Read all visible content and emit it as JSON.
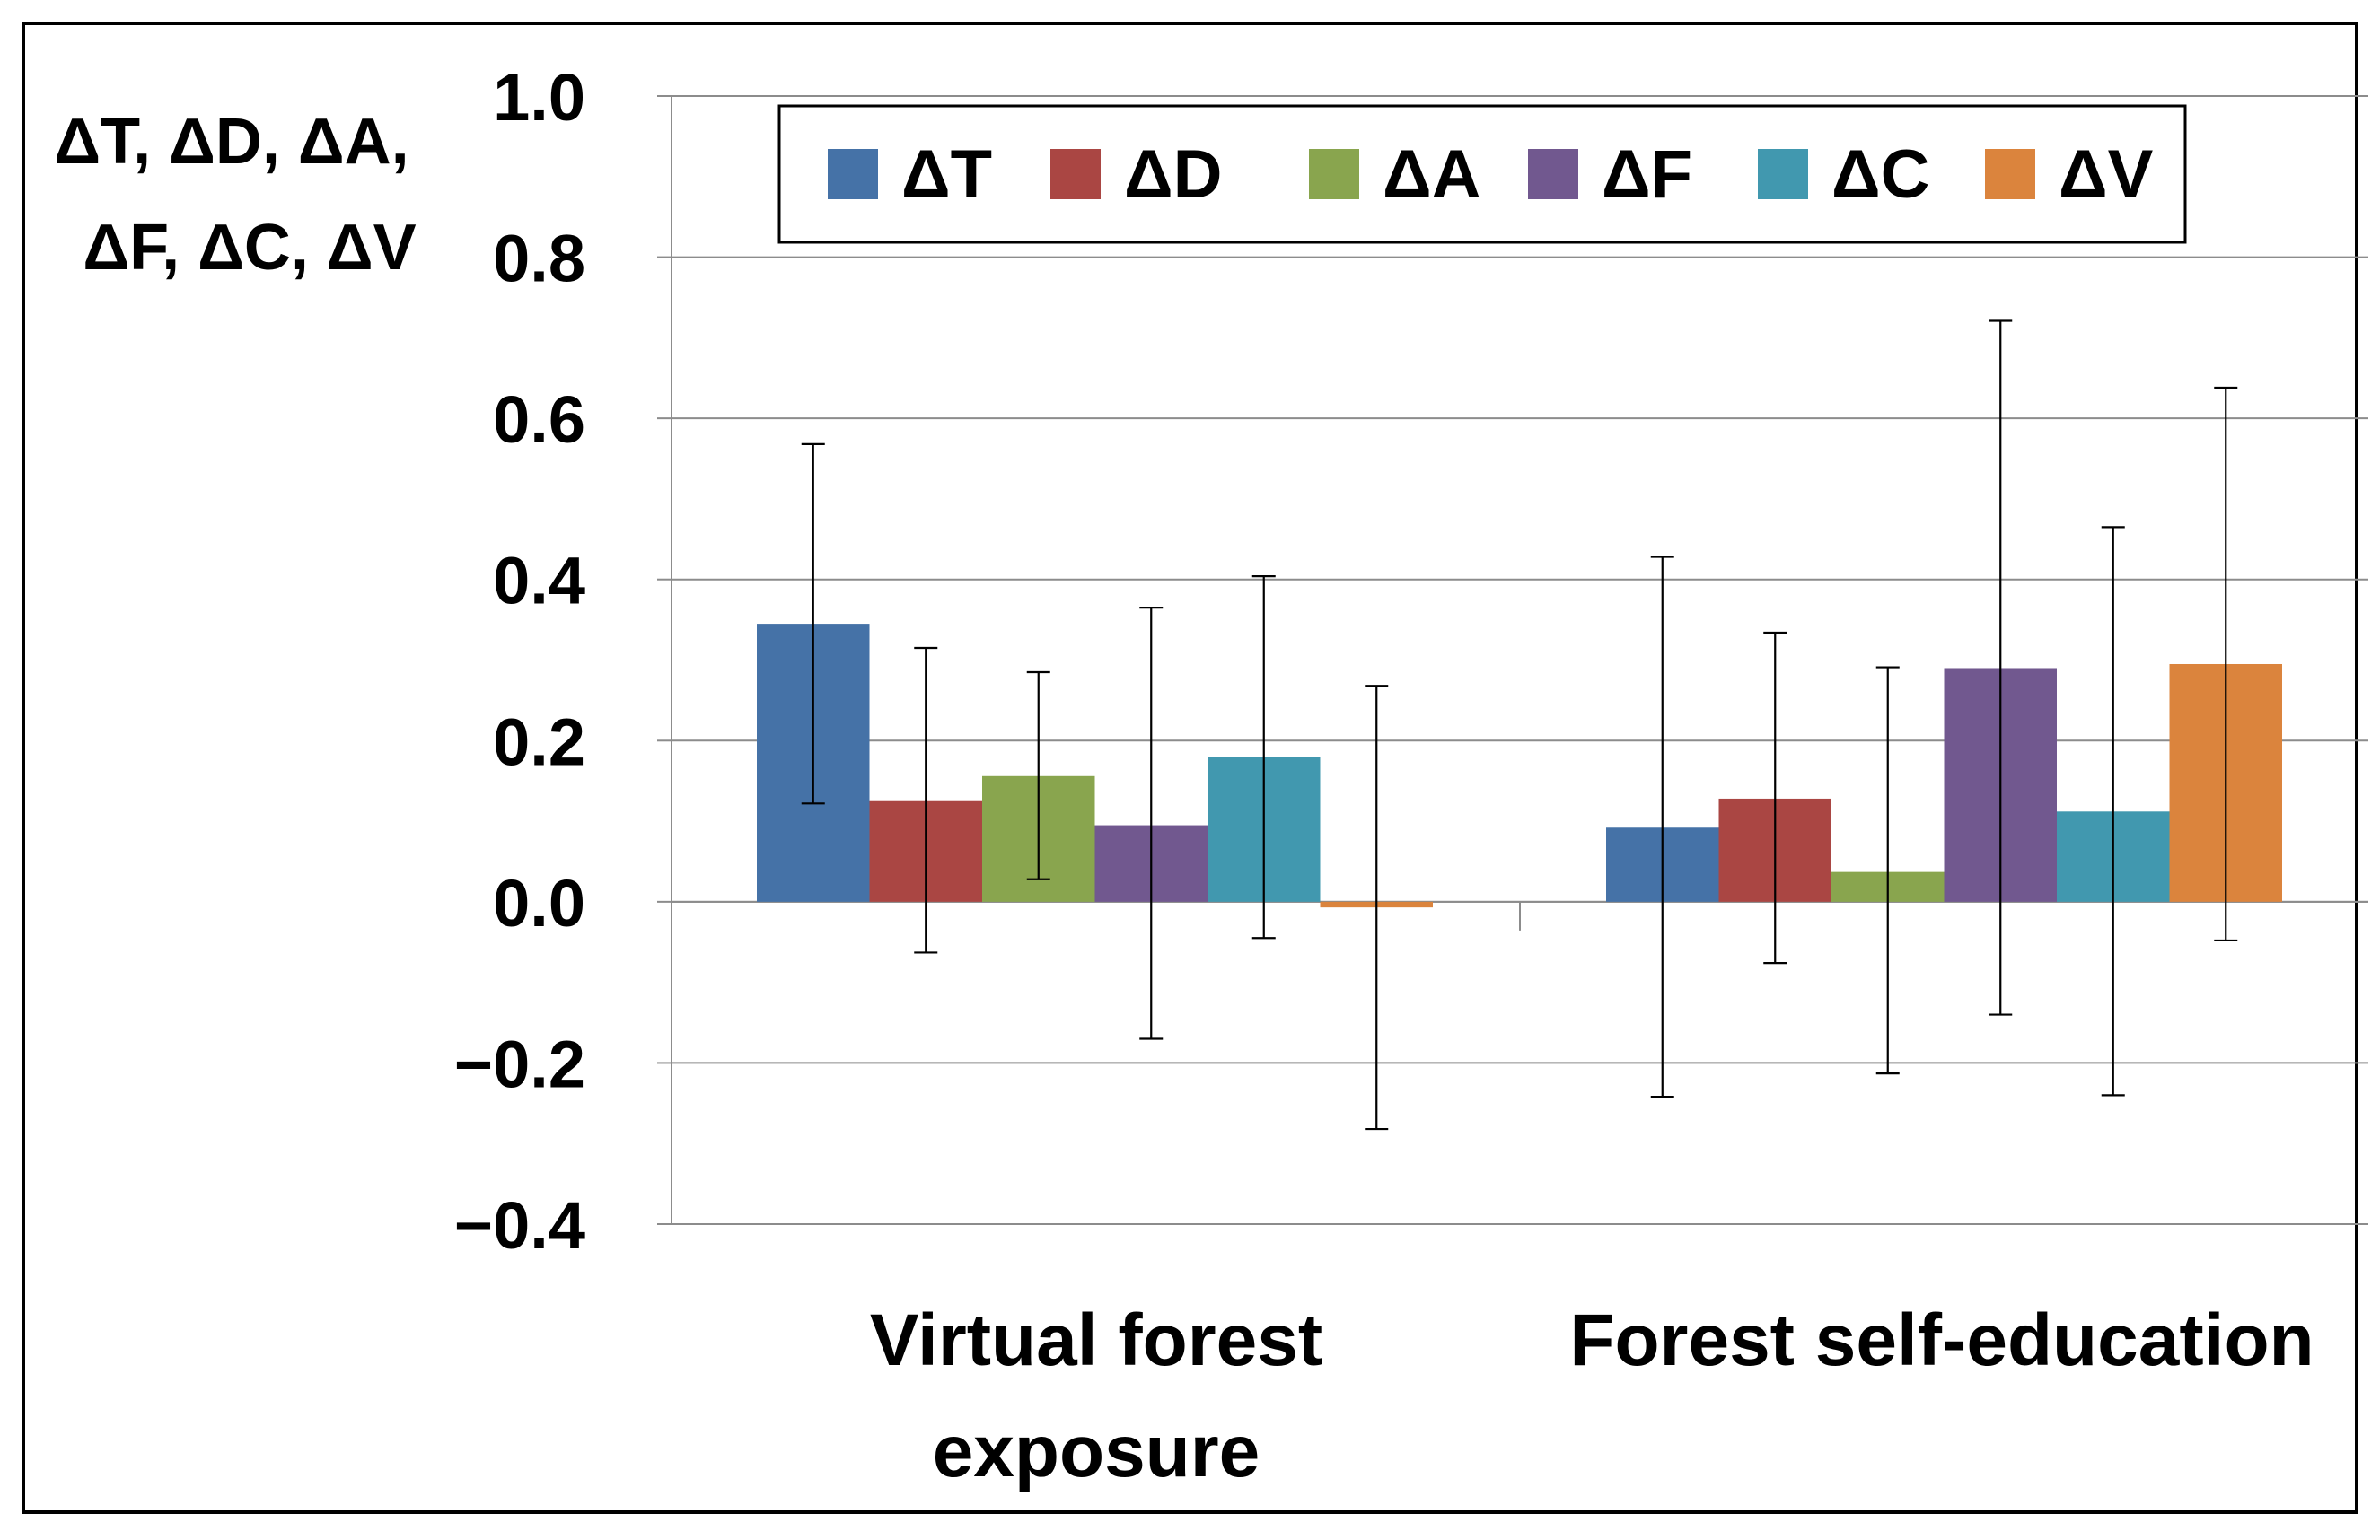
{
  "chart_data": {
    "type": "bar",
    "title": "",
    "xlabel": "",
    "ylabel_lines": [
      "ΔT, ΔD, ΔA,",
      "ΔF, ΔC, ΔV"
    ],
    "ylim": [
      -0.4,
      1.0
    ],
    "yticks": [
      -0.4,
      -0.2,
      0.0,
      0.2,
      0.4,
      0.6,
      0.8,
      1.0
    ],
    "ytick_labels": [
      "−0.4",
      "−0.2",
      "0.0",
      "0.2",
      "0.4",
      "0.6",
      "0.8",
      "1.0"
    ],
    "grid": true,
    "legend_position": "top",
    "categories": [
      {
        "lines": [
          "Virtual forest",
          "exposure"
        ]
      },
      {
        "lines": [
          "Forest self-education"
        ]
      }
    ],
    "series": [
      {
        "name": "ΔT",
        "color": "#4572A7",
        "values": [
          0.345,
          0.092
        ],
        "err_low": [
          0.122,
          -0.242
        ],
        "err_high": [
          0.568,
          0.428
        ]
      },
      {
        "name": "ΔD",
        "color": "#AA4643",
        "values": [
          0.126,
          0.128
        ],
        "err_low": [
          -0.063,
          -0.076
        ],
        "err_high": [
          0.315,
          0.334
        ]
      },
      {
        "name": "ΔA",
        "color": "#89A54E",
        "values": [
          0.156,
          0.037
        ],
        "err_low": [
          0.028,
          -0.213
        ],
        "err_high": [
          0.285,
          0.291
        ]
      },
      {
        "name": "ΔF",
        "color": "#71588F",
        "values": [
          0.095,
          0.29
        ],
        "err_low": [
          -0.17,
          -0.14
        ],
        "err_high": [
          0.365,
          0.721
        ]
      },
      {
        "name": "ΔC",
        "color": "#4198AF",
        "values": [
          0.18,
          0.112
        ],
        "err_low": [
          -0.045,
          -0.24
        ],
        "err_high": [
          0.404,
          0.465
        ]
      },
      {
        "name": "ΔV",
        "color": "#DB843D",
        "values": [
          -0.007,
          0.295
        ],
        "err_low": [
          -0.282,
          -0.048
        ],
        "err_high": [
          0.268,
          0.638
        ]
      }
    ]
  }
}
